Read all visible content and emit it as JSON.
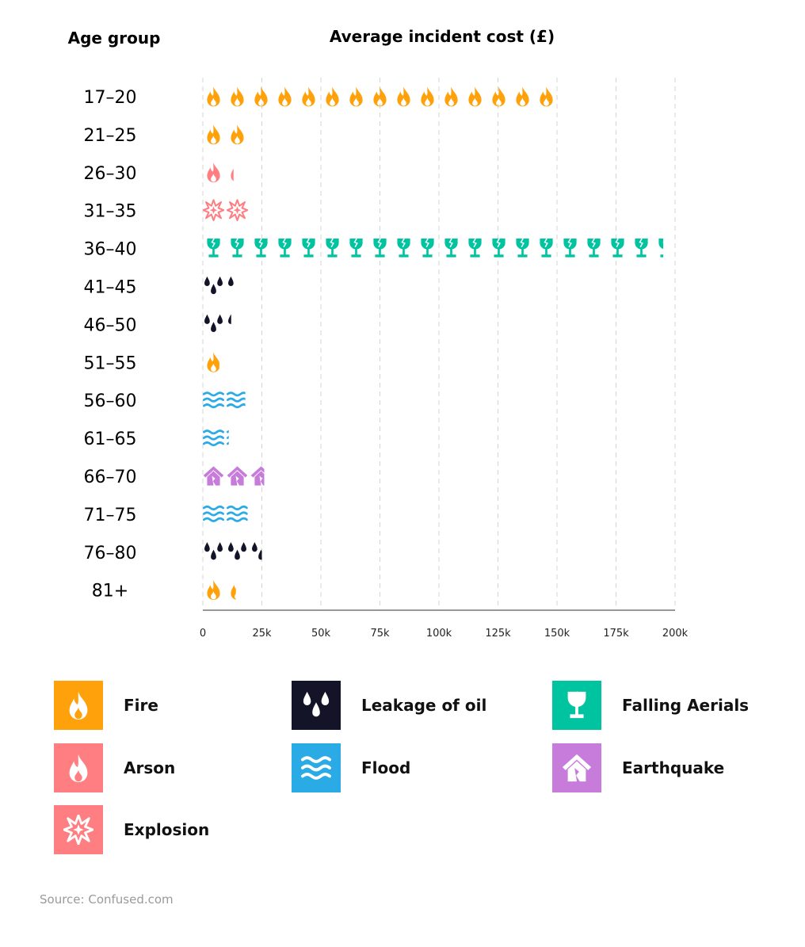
{
  "chart_data": {
    "type": "bar",
    "orientation": "horizontal",
    "row_header": "Age group",
    "title": "Average incident cost (£)",
    "xlim": [
      0,
      200000
    ],
    "x_ticks": [
      "0",
      "25k",
      "50k",
      "75k",
      "100k",
      "125k",
      "150k",
      "175k",
      "200k"
    ],
    "grid": true,
    "categories": [
      "17–20",
      "21–25",
      "26–30",
      "31–35",
      "36–40",
      "41–45",
      "46–50",
      "51–55",
      "56–60",
      "61–65",
      "66–70",
      "71–75",
      "76–80",
      "81+"
    ],
    "values": [
      150000,
      18000,
      13000,
      20000,
      195000,
      13000,
      12000,
      7000,
      18000,
      11000,
      26000,
      19000,
      25000,
      14000
    ],
    "incident_type": [
      "Fire",
      "Fire",
      "Arson",
      "Explosion",
      "Falling Aerials",
      "Leakage of oil",
      "Leakage of oil",
      "Fire",
      "Flood",
      "Flood",
      "Earthquake",
      "Flood",
      "Leakage of oil",
      "Fire"
    ]
  },
  "legend": [
    {
      "label": "Fire",
      "icon": "fire-icon",
      "color": "#FFA10A"
    },
    {
      "label": "Leakage of oil",
      "icon": "oil-drops-icon",
      "color": "#141428"
    },
    {
      "label": "Falling Aerials",
      "icon": "broken-glass-icon",
      "color": "#00C4A0"
    },
    {
      "label": "Arson",
      "icon": "fire-icon",
      "color": "#FF7E82"
    },
    {
      "label": "Flood",
      "icon": "waves-icon",
      "color": "#2AABE6"
    },
    {
      "label": "Earthquake",
      "icon": "cracked-house-icon",
      "color": "#C77CDB"
    },
    {
      "label": "Explosion",
      "icon": "explosion-icon",
      "color": "#FF7E82"
    }
  ],
  "source": "Source: Confused.com"
}
